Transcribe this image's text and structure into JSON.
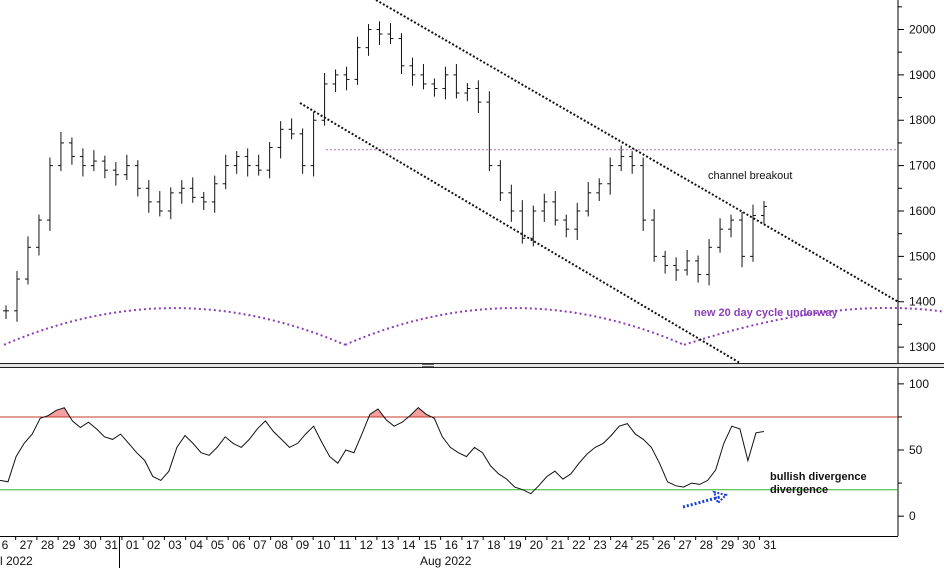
{
  "chart_data": [
    {
      "type": "ohlc",
      "title": "",
      "ylim": [
        1265,
        2065
      ],
      "yticks": [
        1300,
        1400,
        1500,
        1600,
        1700,
        1800,
        1900,
        2000
      ],
      "ytick_labels": [
        "1300",
        "1400",
        "1500",
        "1600",
        "1700",
        "1800",
        "1900",
        "2000"
      ],
      "x_labels": [
        "6",
        "27",
        "28",
        "29",
        "30",
        "31",
        "01",
        "02",
        "03",
        "04",
        "05",
        "06",
        "07",
        "08",
        "09",
        "10",
        "11",
        "12",
        "13",
        "14",
        "15",
        "16",
        "17",
        "18",
        "19",
        "20",
        "21",
        "22",
        "23",
        "24",
        "25",
        "26",
        "27",
        "28",
        "29",
        "30",
        "31"
      ],
      "period_labels": [
        {
          "text": "l 2022",
          "at": 0
        },
        {
          "text": "Aug 2022",
          "at": 20
        }
      ],
      "closes": [
        1380,
        1450,
        1520,
        1580,
        1700,
        1750,
        1720,
        1700,
        1710,
        1690,
        1680,
        1700,
        1650,
        1620,
        1600,
        1640,
        1650,
        1630,
        1620,
        1660,
        1700,
        1720,
        1700,
        1690,
        1740,
        1780,
        1770,
        1700,
        1800,
        1880,
        1900,
        1890,
        1960,
        2000,
        1990,
        1980,
        1920,
        1900,
        1880,
        1870,
        1900,
        1860,
        1870,
        1840,
        1700,
        1640,
        1600,
        1540,
        1600,
        1620,
        1580,
        1560,
        1600,
        1640,
        1660,
        1700,
        1720,
        1700,
        1580,
        1500,
        1480,
        1470,
        1490,
        1460,
        1520,
        1560,
        1580,
        1500,
        1590,
        1610
      ],
      "support_level": 1735,
      "annotations": [
        "channel breakout",
        "new 20 day cycle underway"
      ]
    },
    {
      "type": "line",
      "title": "",
      "ylim": [
        -15,
        112
      ],
      "yticks": [
        0,
        50,
        100
      ],
      "ytick_labels": [
        "0",
        "50",
        "100"
      ],
      "overbought": 75,
      "oversold": 20,
      "values": [
        27,
        26,
        45,
        55,
        62,
        74,
        76,
        80,
        82,
        72,
        67,
        71,
        66,
        60,
        58,
        62,
        55,
        48,
        42,
        30,
        27,
        34,
        52,
        61,
        55,
        48,
        46,
        52,
        60,
        55,
        52,
        58,
        66,
        72,
        64,
        58,
        52,
        55,
        62,
        68,
        56,
        45,
        40,
        50,
        48,
        62,
        77,
        81,
        73,
        68,
        71,
        76,
        82,
        77,
        74,
        60,
        52,
        48,
        45,
        52,
        48,
        38,
        32,
        28,
        22,
        20,
        17,
        23,
        30,
        34,
        28,
        32,
        40,
        47,
        52,
        55,
        61,
        68,
        70,
        62,
        58,
        52,
        40,
        26,
        23,
        22,
        25,
        24,
        27,
        35,
        55,
        68,
        66,
        42,
        63,
        64
      ],
      "annotations": [
        "bullish divergence"
      ]
    }
  ],
  "colors": {
    "price": "#111111",
    "channel": "#111111",
    "support": "#bb66cc",
    "cycle": "#8a3fb8",
    "overbought": "#c0392b",
    "oversold": "#2cb52c",
    "overbought_fill": "#f4a0a0",
    "oscillator": "#111111",
    "divergence_arrow": "#1a3fd6"
  }
}
